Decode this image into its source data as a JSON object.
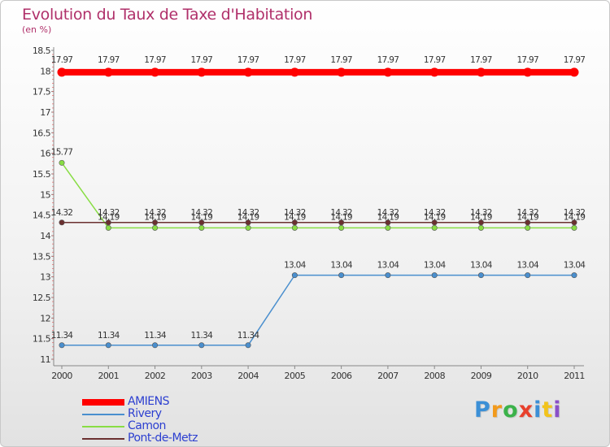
{
  "chart_data": {
    "type": "line",
    "title": "Evolution du Taux de Taxe d'Habitation",
    "subtitle": "(en %)",
    "xlabel": "",
    "ylabel": "",
    "categories": [
      "2000",
      "2001",
      "2002",
      "2003",
      "2004",
      "2005",
      "2006",
      "2007",
      "2008",
      "2009",
      "2010",
      "2011"
    ],
    "y_ticks": [
      "11",
      "11.5",
      "12",
      "12.5",
      "13",
      "13.5",
      "14",
      "14.5",
      "15",
      "15.5",
      "16",
      "16.5",
      "17",
      "17.5",
      "18",
      "18.5"
    ],
    "ylim": [
      11,
      18.5
    ],
    "grid": false,
    "legend_position": "bottom-left",
    "series": [
      {
        "name": "AMIENS",
        "color": "#ff0000",
        "values": [
          17.97,
          17.97,
          17.97,
          17.97,
          17.97,
          17.97,
          17.97,
          17.97,
          17.97,
          17.97,
          17.97,
          17.97
        ],
        "labels": [
          "17.97",
          "17.97",
          "17.97",
          "17.97",
          "17.97",
          "17.97",
          "17.97",
          "17.97",
          "17.97",
          "17.97",
          "17.97",
          "17.97"
        ]
      },
      {
        "name": "Rivery",
        "color": "#4a8fce",
        "values": [
          11.34,
          11.34,
          11.34,
          11.34,
          11.34,
          13.04,
          13.04,
          13.04,
          13.04,
          13.04,
          13.04,
          13.04
        ],
        "labels": [
          "11.34",
          "11.34",
          "11.34",
          "11.34",
          "11.34",
          "13.04",
          "13.04",
          "13.04",
          "13.04",
          "13.04",
          "13.04",
          "13.04"
        ]
      },
      {
        "name": "Camon",
        "color": "#88dd44",
        "values": [
          15.77,
          14.19,
          14.19,
          14.19,
          14.19,
          14.19,
          14.19,
          14.19,
          14.19,
          14.19,
          14.19,
          14.19
        ],
        "labels": [
          "15.77",
          "14.19",
          "14.19",
          "14.19",
          "14.19",
          "14.19",
          "14.19",
          "14.19",
          "14.19",
          "14.19",
          "14.19",
          "14.19"
        ]
      },
      {
        "name": "Pont-de-Metz",
        "color": "#6b3030",
        "values": [
          14.32,
          14.32,
          14.32,
          14.32,
          14.32,
          14.32,
          14.32,
          14.32,
          14.32,
          14.32,
          14.32,
          14.32
        ],
        "labels": [
          "14.32",
          "14.32",
          "14.32",
          "14.32",
          "14.32",
          "14.32",
          "14.32",
          "14.32",
          "14.32",
          "14.32",
          "14.32",
          "14.32"
        ]
      }
    ]
  },
  "logo": {
    "letters": [
      "P",
      "r",
      "o",
      "x",
      "i",
      "t",
      "i"
    ],
    "colors": [
      "#3b8fd6",
      "#f29a1c",
      "#3bb24a",
      "#e8402c",
      "#3b8fd6",
      "#f2c31c",
      "#8a4fc8"
    ]
  }
}
